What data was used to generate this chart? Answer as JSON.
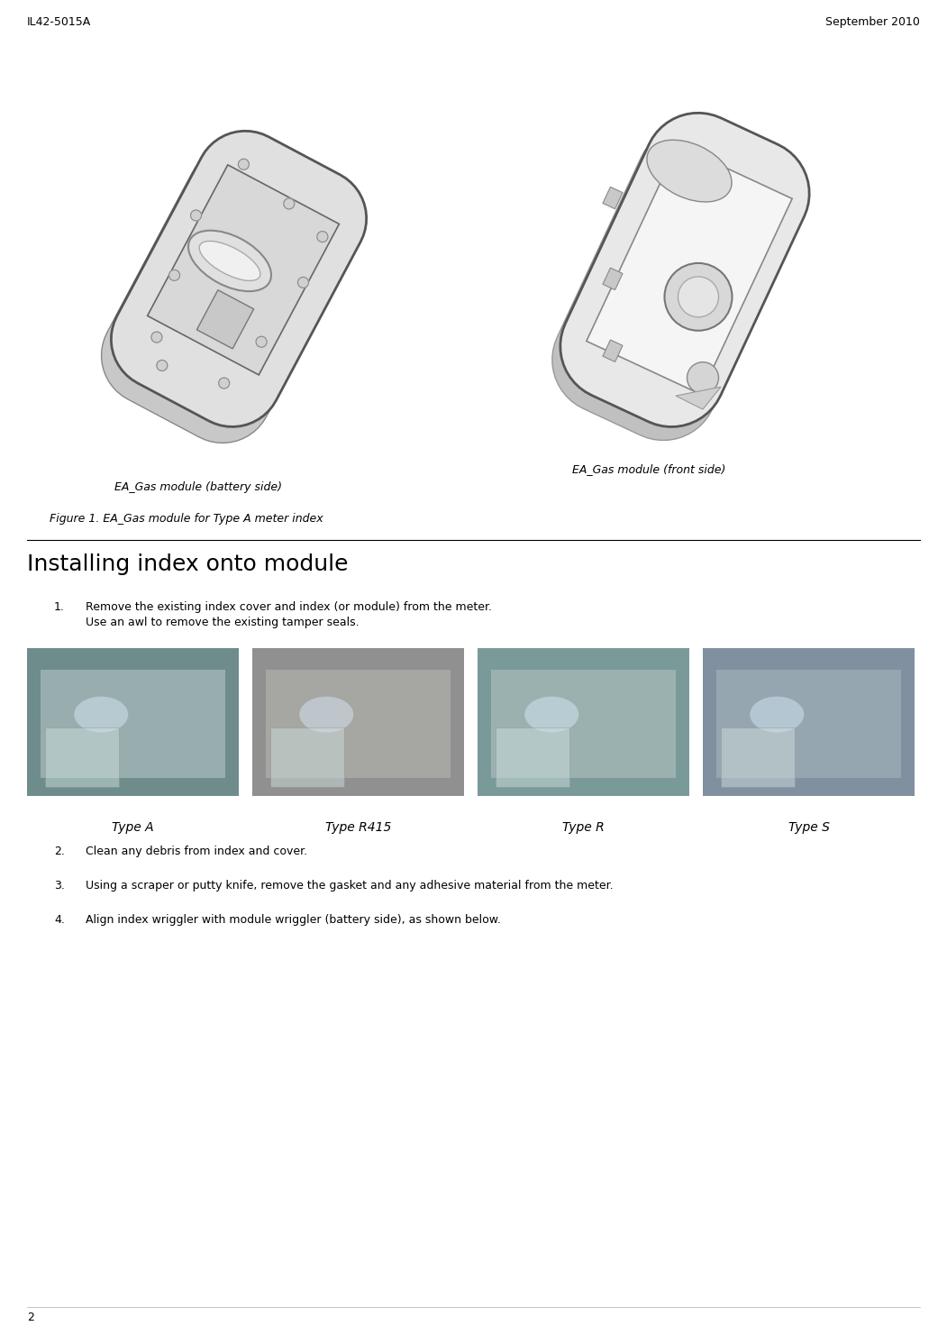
{
  "header_left": "IL42-5015A",
  "header_right": "September 2010",
  "footer_page": "2",
  "figure_caption": "Figure 1. EA_Gas module for Type A meter index",
  "label_battery": "EA_Gas module (battery side)",
  "label_front": "EA_Gas module (front side)",
  "section_title": "Installing index onto module",
  "instruction1_line1": "Remove the existing index cover and index (or module) from the meter.",
  "instruction1_line2": "Use an awl to remove the existing tamper seals.",
  "instruction2": "Clean any debris from index and cover.",
  "instruction3": "Using a scraper or putty knife, remove the gasket and any adhesive material from the meter.",
  "instruction4": "Align index wriggler with module wriggler (battery side), as shown below.",
  "type_labels": [
    "Type A",
    "Type R415",
    "Type R",
    "Type S"
  ],
  "photo_colors": [
    "#7a9090",
    "#9a9090",
    "#8a9898",
    "#8090a0"
  ],
  "photo_highlight_colors": [
    "#aababa",
    "#bababa",
    "#aababa",
    "#90a0b0"
  ],
  "bg_color": "#ffffff",
  "text_color": "#000000",
  "device_edge": "#555555",
  "device_fill": "#e8e8e8",
  "device_shadow": "#b0b0b0",
  "header_fontsize": 9,
  "body_fontsize": 9,
  "section_fontsize": 18,
  "caption_fontsize": 9,
  "label_fontsize": 9,
  "type_label_fontsize": 10
}
